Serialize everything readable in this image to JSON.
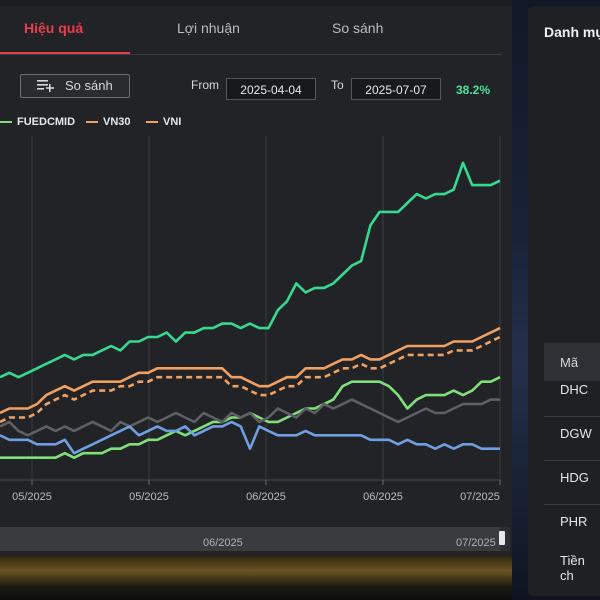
{
  "tabs": [
    {
      "label": "Hiệu quả",
      "active": true
    },
    {
      "label": "Lợi nhuận",
      "active": false
    },
    {
      "label": "So sánh",
      "active": false
    }
  ],
  "toolbar": {
    "compare_label": "So sánh",
    "from_label": "From",
    "from_value": "2025-04-04",
    "to_label": "To",
    "to_value": "2025-07-07",
    "return_pct": "38.2%"
  },
  "colors": {
    "accent": "#e8404a",
    "positive": "#4de39a"
  },
  "chart_data": {
    "type": "line",
    "legend": [
      {
        "name": "FUEDCMID",
        "color": "#7fe07a",
        "style": "solid"
      },
      {
        "name": "VN30",
        "color": "#f0a060",
        "style": "solid"
      },
      {
        "name": "VNI",
        "color": "#f0a060",
        "style": "dashed"
      }
    ],
    "x_ticks": [
      "05/2025",
      "05/2025",
      "06/2025",
      "06/2025",
      "07/2025"
    ],
    "grid": "vertical",
    "series": [
      {
        "color": "#36d98e",
        "values": [
          0.18,
          0.19,
          0.18,
          0.19,
          0.2,
          0.21,
          0.22,
          0.23,
          0.22,
          0.23,
          0.23,
          0.24,
          0.25,
          0.24,
          0.26,
          0.26,
          0.27,
          0.27,
          0.28,
          0.26,
          0.28,
          0.28,
          0.29,
          0.29,
          0.3,
          0.3,
          0.29,
          0.3,
          0.29,
          0.29,
          0.33,
          0.35,
          0.39,
          0.37,
          0.38,
          0.38,
          0.39,
          0.41,
          0.43,
          0.44,
          0.52,
          0.55,
          0.55,
          0.55,
          0.57,
          0.59,
          0.58,
          0.59,
          0.59,
          0.6,
          0.66,
          0.61,
          0.61,
          0.61,
          0.62
        ]
      },
      {
        "color": "#f0a060",
        "values": [
          0.1,
          0.11,
          0.11,
          0.11,
          0.12,
          0.14,
          0.15,
          0.16,
          0.15,
          0.16,
          0.17,
          0.17,
          0.17,
          0.17,
          0.18,
          0.19,
          0.19,
          0.2,
          0.2,
          0.2,
          0.2,
          0.2,
          0.2,
          0.2,
          0.2,
          0.18,
          0.18,
          0.17,
          0.16,
          0.16,
          0.17,
          0.18,
          0.18,
          0.2,
          0.2,
          0.2,
          0.21,
          0.22,
          0.22,
          0.23,
          0.22,
          0.22,
          0.23,
          0.24,
          0.25,
          0.25,
          0.25,
          0.25,
          0.25,
          0.26,
          0.26,
          0.26,
          0.27,
          0.28,
          0.29
        ]
      },
      {
        "color": "#f0a060",
        "dashed": true,
        "values": [
          0.08,
          0.09,
          0.09,
          0.09,
          0.1,
          0.12,
          0.13,
          0.14,
          0.13,
          0.14,
          0.15,
          0.15,
          0.15,
          0.16,
          0.16,
          0.17,
          0.17,
          0.18,
          0.18,
          0.18,
          0.18,
          0.18,
          0.18,
          0.18,
          0.18,
          0.16,
          0.16,
          0.15,
          0.14,
          0.14,
          0.15,
          0.16,
          0.16,
          0.18,
          0.18,
          0.18,
          0.19,
          0.2,
          0.2,
          0.21,
          0.2,
          0.2,
          0.21,
          0.22,
          0.23,
          0.23,
          0.23,
          0.23,
          0.23,
          0.24,
          0.24,
          0.24,
          0.25,
          0.26,
          0.27
        ]
      },
      {
        "color": "#7fe07a",
        "values": [
          0.0,
          0.0,
          0.0,
          0.0,
          0.0,
          0.0,
          0.0,
          0.01,
          0.0,
          0.01,
          0.01,
          0.01,
          0.02,
          0.02,
          0.03,
          0.03,
          0.04,
          0.04,
          0.05,
          0.06,
          0.05,
          0.06,
          0.07,
          0.08,
          0.08,
          0.09,
          0.09,
          0.1,
          0.09,
          0.08,
          0.08,
          0.09,
          0.1,
          0.11,
          0.11,
          0.12,
          0.13,
          0.16,
          0.17,
          0.17,
          0.17,
          0.17,
          0.16,
          0.14,
          0.11,
          0.13,
          0.14,
          0.14,
          0.14,
          0.15,
          0.14,
          0.15,
          0.17,
          0.17,
          0.18
        ]
      },
      {
        "color": "#5e5f64",
        "values": [
          0.07,
          0.08,
          0.06,
          0.05,
          0.06,
          0.07,
          0.06,
          0.07,
          0.06,
          0.07,
          0.08,
          0.07,
          0.06,
          0.08,
          0.07,
          0.08,
          0.09,
          0.08,
          0.09,
          0.1,
          0.09,
          0.08,
          0.1,
          0.09,
          0.08,
          0.1,
          0.09,
          0.1,
          0.08,
          0.09,
          0.11,
          0.1,
          0.09,
          0.11,
          0.1,
          0.12,
          0.11,
          0.12,
          0.13,
          0.12,
          0.11,
          0.1,
          0.09,
          0.08,
          0.09,
          0.1,
          0.11,
          0.1,
          0.1,
          0.11,
          0.12,
          0.12,
          0.12,
          0.13,
          0.13
        ]
      },
      {
        "color": "#6f9fe0",
        "values": [
          0.05,
          0.04,
          0.04,
          0.04,
          0.03,
          0.03,
          0.03,
          0.04,
          0.01,
          0.02,
          0.03,
          0.04,
          0.05,
          0.06,
          0.07,
          0.05,
          0.06,
          0.07,
          0.06,
          0.06,
          0.07,
          0.05,
          0.06,
          0.07,
          0.07,
          0.08,
          0.07,
          0.02,
          0.07,
          0.06,
          0.05,
          0.05,
          0.05,
          0.06,
          0.05,
          0.05,
          0.05,
          0.05,
          0.05,
          0.05,
          0.04,
          0.04,
          0.04,
          0.03,
          0.04,
          0.03,
          0.03,
          0.02,
          0.03,
          0.02,
          0.03,
          0.03,
          0.02,
          0.02,
          0.02
        ]
      }
    ]
  },
  "scrollbar": {
    "labels": [
      "06/2025",
      "07/2025"
    ]
  },
  "right_panel": {
    "title": "Danh mục",
    "header": "Mã",
    "rows": [
      "DHC",
      "DGW",
      "HDG",
      "PHR",
      "Tiền ch"
    ]
  }
}
